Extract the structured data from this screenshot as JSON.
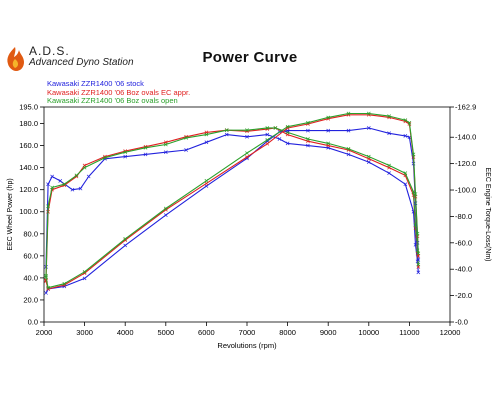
{
  "logo": {
    "name": "A.D.S.",
    "subtitle": "Advanced Dyno Station"
  },
  "chart_data": {
    "type": "line",
    "title": "Power Curve",
    "xlabel": "Revolutions (rpm)",
    "ylabel": "EEC Wheel Power (hp)",
    "y2label": "EEC Engine Torque-Loss(Nm)",
    "xlim": [
      2000,
      12000
    ],
    "ylim": [
      0,
      195
    ],
    "y2lim": [
      0,
      162.9
    ],
    "x_ticks": [
      2000,
      3000,
      4000,
      5000,
      6000,
      7000,
      8000,
      9000,
      10000,
      11000,
      12000
    ],
    "y_ticks": [
      0,
      20,
      40,
      60,
      80,
      100,
      120,
      140,
      160,
      180,
      195
    ],
    "y_tick_labels": [
      "0.0",
      "20.0",
      "40.0",
      "60.0",
      "80.0",
      "100.0",
      "120.0",
      "140.0",
      "160.0",
      "180.0",
      "195.0"
    ],
    "y2_ticks": [
      0,
      20,
      40,
      60,
      80,
      100,
      120,
      140,
      162.9
    ],
    "y2_tick_labels": [
      "-0.0",
      "-20.0",
      "-40.0",
      "-60.0",
      "-80.0",
      "-100.0",
      "-120.0",
      "-140.0",
      "-162.9"
    ],
    "grid": false,
    "legend_position": "top-left",
    "series": [
      {
        "name": "Kawasaki  ZZR1400 '06 stock",
        "color": "#2222dd",
        "kind": "power",
        "x": [
          2050,
          2100,
          2200,
          2400,
          2700,
          2900,
          3100,
          3500,
          4000,
          4500,
          5000,
          5500,
          6000,
          6500,
          7000,
          7500,
          7800,
          8000,
          8500,
          9000,
          9500,
          10000,
          10500,
          10900,
          11100,
          11150,
          11200,
          11220
        ],
        "values": [
          50,
          125,
          132,
          128,
          120,
          121,
          132,
          148,
          150,
          152,
          154,
          156,
          163,
          170,
          168,
          170,
          166,
          162,
          160,
          158,
          152,
          145,
          135,
          125,
          100,
          70,
          55,
          45
        ]
      },
      {
        "name": "Kawasaki ZZR1400 '06 Boz ovals EC appr.",
        "color": "#e02020",
        "kind": "power",
        "x": [
          2050,
          2100,
          2200,
          2500,
          2800,
          3000,
          3500,
          4000,
          4500,
          5000,
          5500,
          6000,
          6500,
          7000,
          7500,
          7700,
          8000,
          8500,
          9000,
          9500,
          10000,
          10500,
          10900,
          11100,
          11150,
          11200,
          11220
        ],
        "values": [
          38,
          100,
          120,
          124,
          132,
          142,
          150,
          155,
          159,
          163,
          168,
          172,
          174,
          173,
          175,
          176,
          170,
          164,
          160,
          156,
          148,
          140,
          133,
          115,
          85,
          62,
          50
        ]
      },
      {
        "name": "Kawasaki ZZR1400 '06 Boz ovals open",
        "color": "#2aa02a",
        "kind": "power",
        "x": [
          2050,
          2100,
          2200,
          2500,
          2800,
          3000,
          3500,
          4000,
          4500,
          5000,
          5500,
          6000,
          6500,
          7000,
          7500,
          7700,
          8000,
          8500,
          9000,
          9500,
          10000,
          10500,
          10900,
          11100,
          11150,
          11200,
          11220
        ],
        "values": [
          42,
          105,
          122,
          125,
          133,
          140,
          149,
          154,
          158,
          161,
          167,
          170,
          174,
          174,
          176,
          176,
          172,
          166,
          162,
          157,
          150,
          142,
          135,
          118,
          88,
          65,
          52
        ]
      },
      {
        "color": "#2222dd",
        "kind": "torque",
        "x": [
          2050,
          2100,
          2500,
          3000,
          4000,
          5000,
          6000,
          7000,
          7500,
          7800,
          8000,
          8500,
          9000,
          9500,
          10000,
          10500,
          10900,
          11000,
          11100,
          11150,
          11200,
          11220
        ],
        "values": [
          22,
          25,
          27,
          33,
          58,
          81,
          103,
          124,
          137,
          144,
          145,
          145,
          145,
          145,
          147,
          143,
          141,
          140,
          120,
          90,
          60,
          47
        ]
      },
      {
        "color": "#e02020",
        "kind": "torque",
        "x": [
          2050,
          2100,
          2500,
          3000,
          4000,
          5000,
          6000,
          7000,
          7500,
          8000,
          8500,
          9000,
          9500,
          10000,
          10500,
          10900,
          11000,
          11100,
          11150,
          11200,
          11220
        ],
        "values": [
          31,
          25,
          28,
          37,
          62,
          85,
          105,
          125,
          135,
          147,
          150,
          154,
          157,
          157,
          155,
          152,
          150,
          125,
          95,
          65,
          50
        ]
      },
      {
        "color": "#2aa02a",
        "kind": "torque",
        "x": [
          2050,
          2100,
          2500,
          3000,
          4000,
          5000,
          6000,
          7000,
          7500,
          8000,
          8500,
          9000,
          9500,
          10000,
          10500,
          10900,
          11000,
          11100,
          11150,
          11200,
          11220
        ],
        "values": [
          34,
          26,
          29,
          38,
          63,
          86,
          107,
          128,
          138,
          148,
          151,
          155,
          158,
          158,
          156,
          153,
          151,
          127,
          97,
          67,
          52
        ]
      }
    ]
  }
}
